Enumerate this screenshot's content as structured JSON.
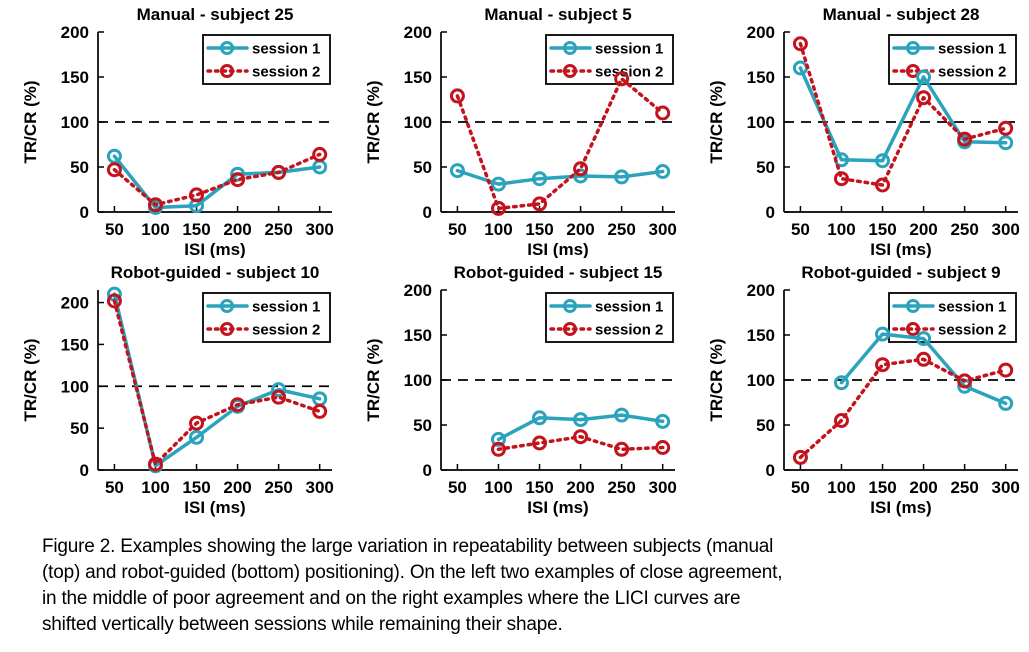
{
  "figure": {
    "caption_lines": [
      "Figure 2. Examples showing the large variation in repeatability between subjects (manual",
      "(top) and robot-guided (bottom) positioning). On the left two examples of close agreement,",
      "in the middle of poor agreement and on the right examples where the LICI curves are",
      "shifted vertically between sessions while remaining their shape."
    ]
  },
  "chart_data": {
    "type": "line",
    "layout": "2 rows x 3 columns of subplots",
    "xlabel": "ISI (ms)",
    "ylabel": "TR/CR (%)",
    "xticks": [
      50,
      100,
      150,
      200,
      250,
      300
    ],
    "yticks": [
      0,
      50,
      100,
      150,
      200
    ],
    "xlim": [
      30,
      315
    ],
    "reference_line_y": 100,
    "grid": false,
    "legend_position": "top-right inside axes",
    "legend": [
      "session 1",
      "session 2"
    ],
    "colors": {
      "session 1": "#2BA3BC",
      "session 2": "#C3141E"
    },
    "line_styles": {
      "session 1": "solid",
      "session 2": "dotted"
    },
    "marker": "open-circle",
    "subplots": [
      {
        "title": "Manual - subject 25",
        "ylim": [
          0,
          200
        ],
        "series": [
          {
            "name": "session 1",
            "x": [
              50,
              100,
              150,
              200,
              250,
              300
            ],
            "y": [
              62,
              5,
              7,
              42,
              44,
              50
            ]
          },
          {
            "name": "session 2",
            "x": [
              50,
              100,
              150,
              200,
              250,
              300
            ],
            "y": [
              47,
              8,
              19,
              36,
              44,
              64
            ]
          }
        ]
      },
      {
        "title": "Manual - subject 5",
        "ylim": [
          0,
          200
        ],
        "series": [
          {
            "name": "session 1",
            "x": [
              50,
              100,
              150,
              200,
              250,
              300
            ],
            "y": [
              46,
              31,
              37,
              40,
              39,
              45
            ]
          },
          {
            "name": "session 2",
            "x": [
              50,
              100,
              150,
              200,
              250,
              300
            ],
            "y": [
              129,
              4,
              9,
              48,
              148,
              110
            ]
          }
        ]
      },
      {
        "title": "Manual - subject 28",
        "ylim": [
          0,
          200
        ],
        "series": [
          {
            "name": "session 1",
            "x": [
              50,
              100,
              150,
              200,
              250,
              300
            ],
            "y": [
              160,
              58,
              57,
              150,
              78,
              77
            ]
          },
          {
            "name": "session 2",
            "x": [
              50,
              100,
              150,
              200,
              250,
              300
            ],
            "y": [
              187,
              37,
              30,
              127,
              81,
              93
            ]
          }
        ]
      },
      {
        "title": "Robot-guided - subject 10",
        "ylim": [
          0,
          215
        ],
        "series": [
          {
            "name": "session 1",
            "x": [
              50,
              100,
              150,
              200,
              250,
              300
            ],
            "y": [
              210,
              5,
              39,
              76,
              96,
              85
            ]
          },
          {
            "name": "session 2",
            "x": [
              50,
              100,
              150,
              200,
              250,
              300
            ],
            "y": [
              202,
              7,
              56,
              78,
              87,
              70
            ]
          }
        ]
      },
      {
        "title": "Robot-guided - subject 15",
        "ylim": [
          0,
          200
        ],
        "series": [
          {
            "name": "session 1",
            "x": [
              100,
              150,
              200,
              250,
              300
            ],
            "y": [
              34,
              58,
              56,
              61,
              54
            ]
          },
          {
            "name": "session 2",
            "x": [
              100,
              150,
              200,
              250,
              300
            ],
            "y": [
              23,
              30,
              37,
              23,
              25
            ]
          }
        ]
      },
      {
        "title": "Robot-guided - subject 9",
        "ylim": [
          0,
          200
        ],
        "series": [
          {
            "name": "session 1",
            "x": [
              100,
              150,
              200,
              250,
              300
            ],
            "y": [
              97,
              151,
              146,
              93,
              74
            ]
          },
          {
            "name": "session 2",
            "x": [
              50,
              100,
              150,
              200,
              250,
              300
            ],
            "y": [
              14,
              55,
              117,
              123,
              99,
              111
            ]
          }
        ]
      }
    ]
  }
}
